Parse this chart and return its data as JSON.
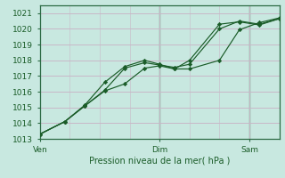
{
  "title": "Pression niveau de la mer( hPa )",
  "bg_color": "#c8e8e0",
  "grid_major_color": "#c8b8c8",
  "grid_minor_color": "#c8b8c8",
  "line_color": "#1a5c28",
  "ylim": [
    1013,
    1021.5
  ],
  "yticks": [
    1013,
    1014,
    1015,
    1016,
    1017,
    1018,
    1019,
    1020,
    1021
  ],
  "xtick_labels": [
    "Ven",
    "Dim",
    "Sam"
  ],
  "xtick_positions": [
    0,
    48,
    84
  ],
  "vline_positions": [
    48,
    84
  ],
  "series": [
    {
      "x": [
        0,
        10,
        18,
        26,
        34,
        42,
        48,
        54,
        60,
        72,
        80,
        88,
        96
      ],
      "y": [
        1013.3,
        1014.1,
        1015.1,
        1016.1,
        1017.5,
        1017.85,
        1017.7,
        1017.55,
        1017.75,
        1020.0,
        1020.5,
        1020.3,
        1020.65
      ]
    },
    {
      "x": [
        0,
        10,
        18,
        26,
        34,
        42,
        48,
        54,
        60,
        72,
        80,
        88,
        96
      ],
      "y": [
        1013.3,
        1014.1,
        1015.15,
        1016.6,
        1017.6,
        1018.0,
        1017.75,
        1017.45,
        1017.45,
        1018.0,
        1019.95,
        1020.4,
        1020.7
      ]
    },
    {
      "x": [
        0,
        10,
        18,
        26,
        34,
        42,
        48,
        54,
        60,
        72,
        80,
        88,
        96
      ],
      "y": [
        1013.3,
        1014.1,
        1015.1,
        1016.05,
        1016.5,
        1017.5,
        1017.65,
        1017.45,
        1018.0,
        1020.3,
        1020.45,
        1020.25,
        1020.65
      ]
    }
  ]
}
